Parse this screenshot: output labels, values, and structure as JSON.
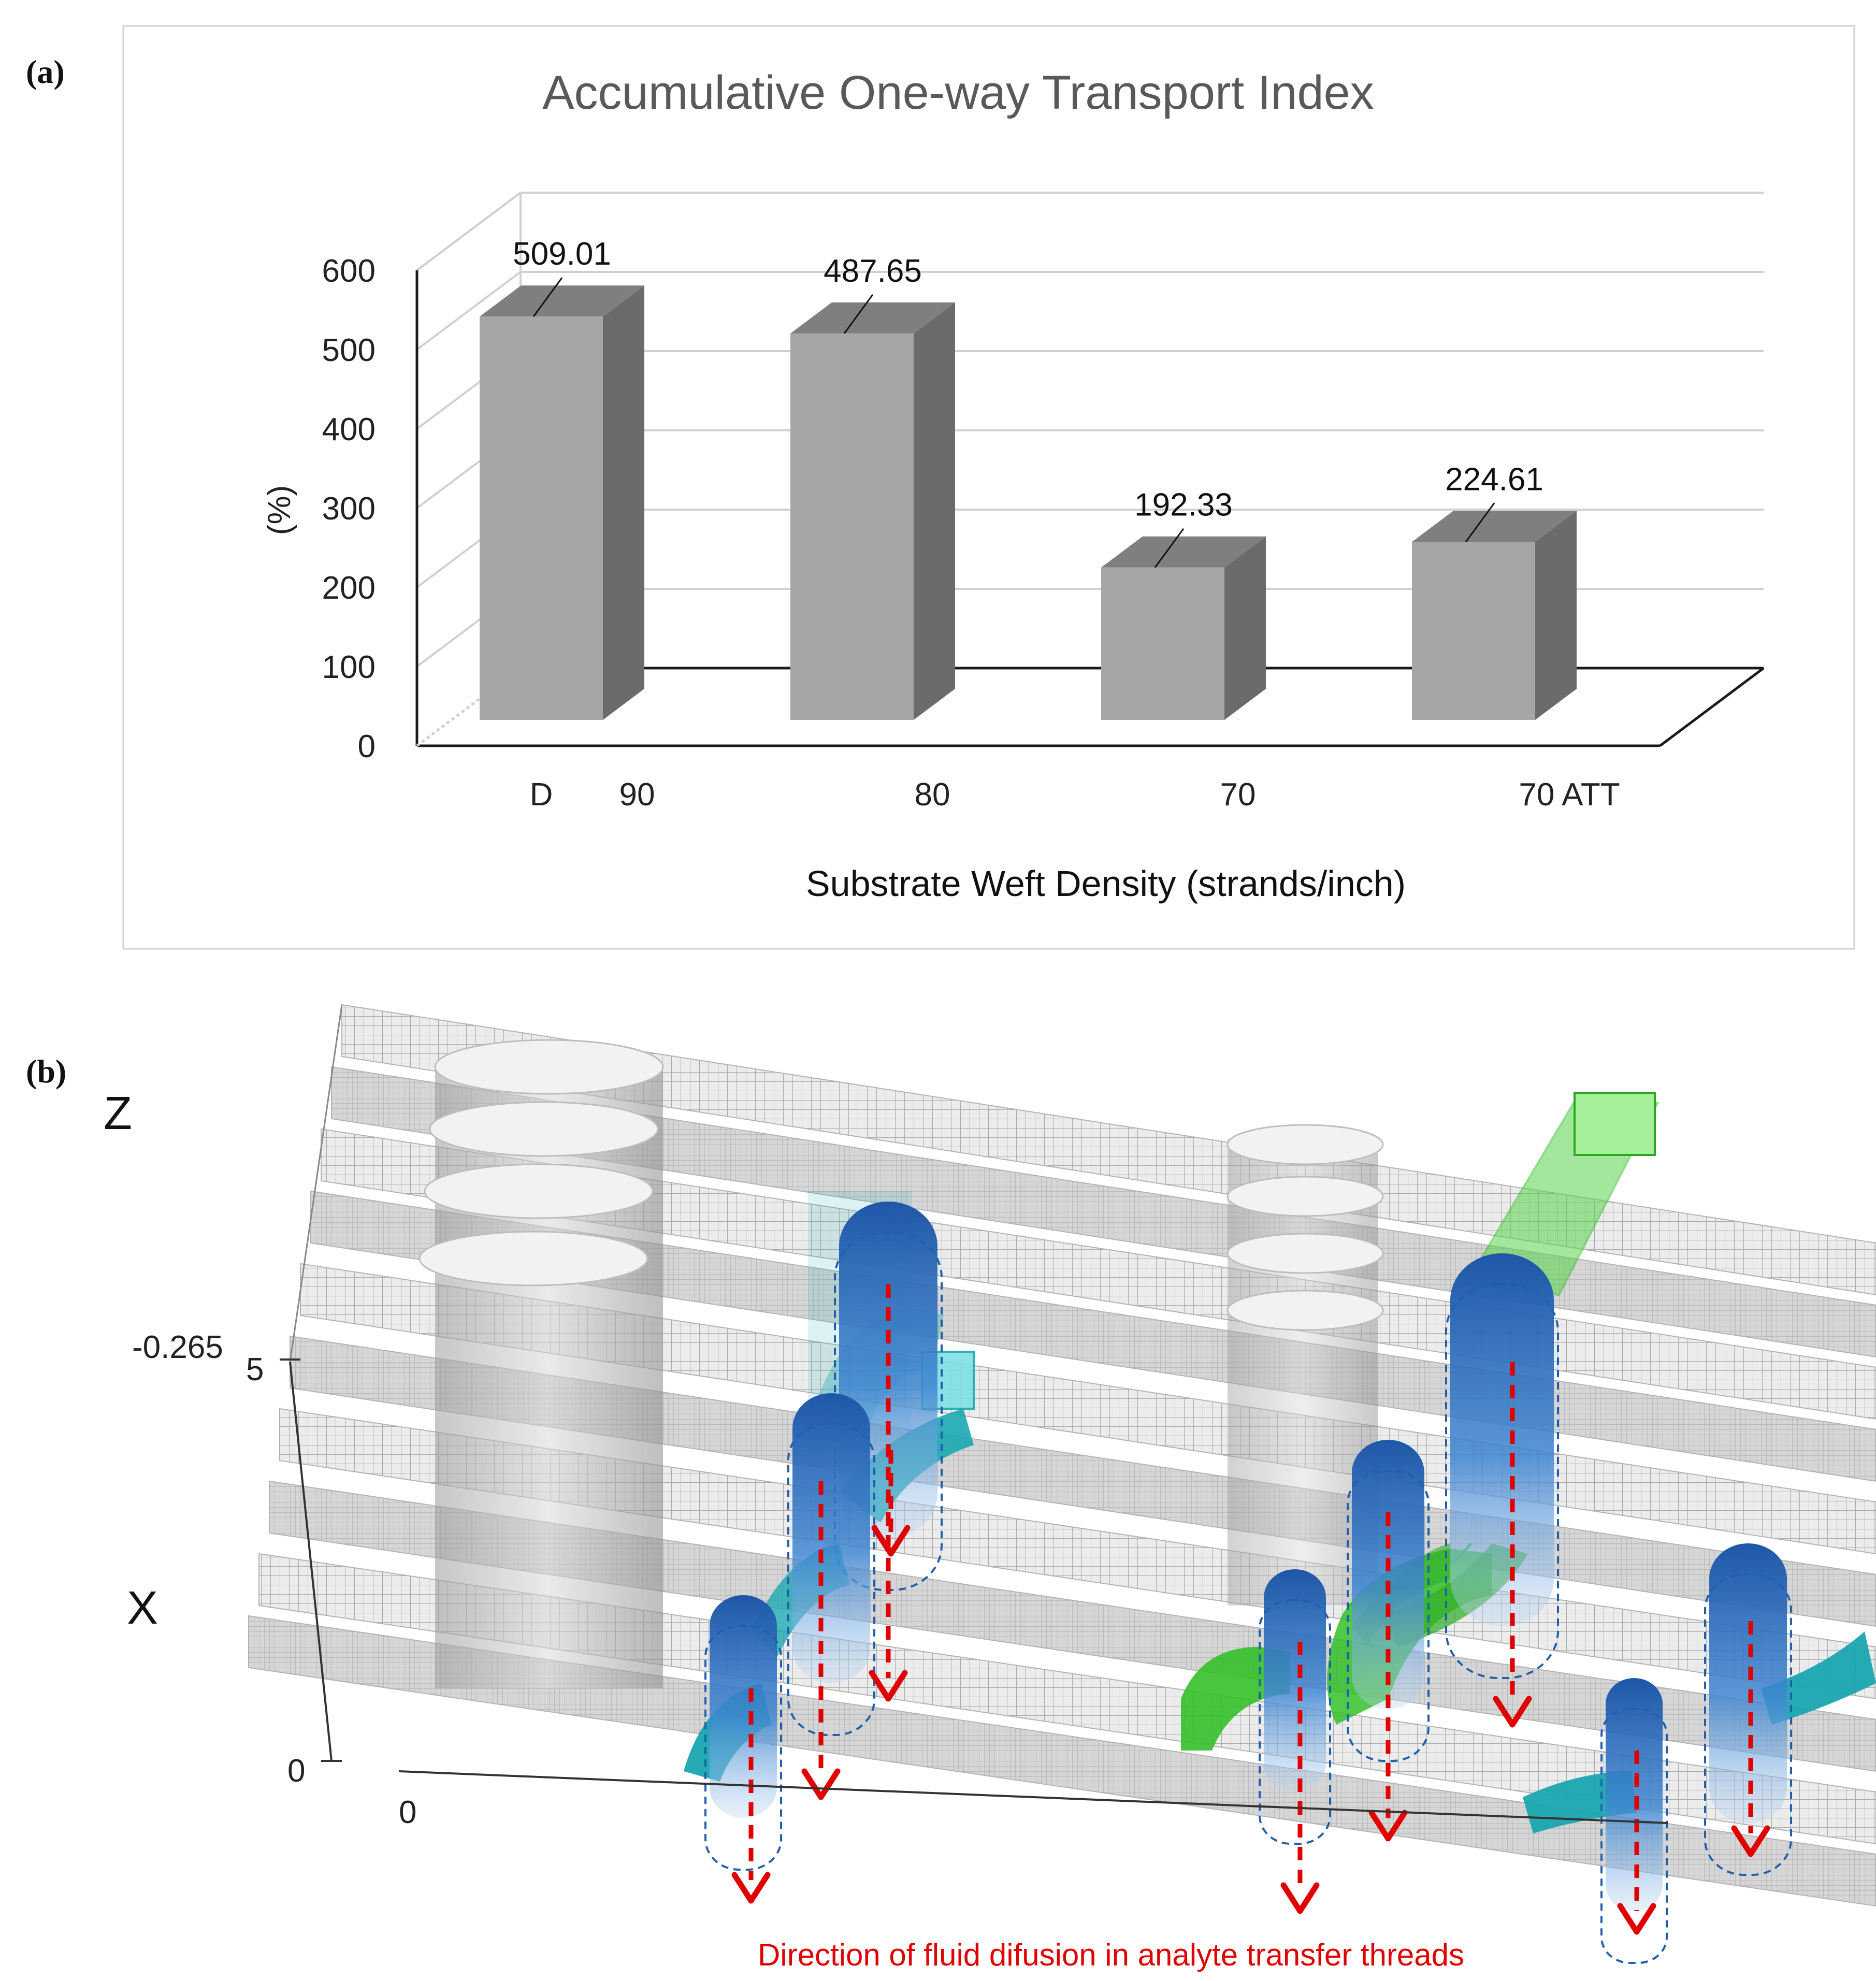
{
  "panel_a_label": "(a)",
  "panel_b_label": "(b)",
  "chart_data": {
    "type": "bar",
    "title": "Accumulative One-way Transport Index",
    "xlabel": "Substrate Weft Density (strands/inch)",
    "ylabel": "(%)",
    "categories": [
      "90",
      "80",
      "70",
      "70 ATT"
    ],
    "values": [
      509.01,
      487.65,
      192.33,
      224.61
    ],
    "value_labels": [
      "509.01",
      "487.65",
      "192.33",
      "224.61"
    ],
    "ylim": [
      0,
      600
    ],
    "yticks": [
      0,
      100,
      200,
      300,
      400,
      500,
      600
    ],
    "ytick_labels": [
      "0",
      "100",
      "200",
      "300",
      "400",
      "500",
      "600"
    ],
    "depth_axis_label": "D",
    "grid": true,
    "style": "3d-column",
    "colors": {
      "front": "#a6a6a6",
      "top": "#7f7f7f",
      "side": "#6b6b6b"
    }
  },
  "diagram_b": {
    "axis_z": "Z",
    "axis_x": "X",
    "label_top": "-0.265",
    "label_5": "5",
    "label_0_left": "0",
    "label_0_bottom": "0",
    "caption": "Direction of fluid difusion in analyte transfer threads",
    "colors": {
      "arrow": "#e00000",
      "thread": "#1f5fae",
      "cyan": "#1aa7b0",
      "green": "#35c02a",
      "mesh": "#8c8c8c"
    }
  }
}
